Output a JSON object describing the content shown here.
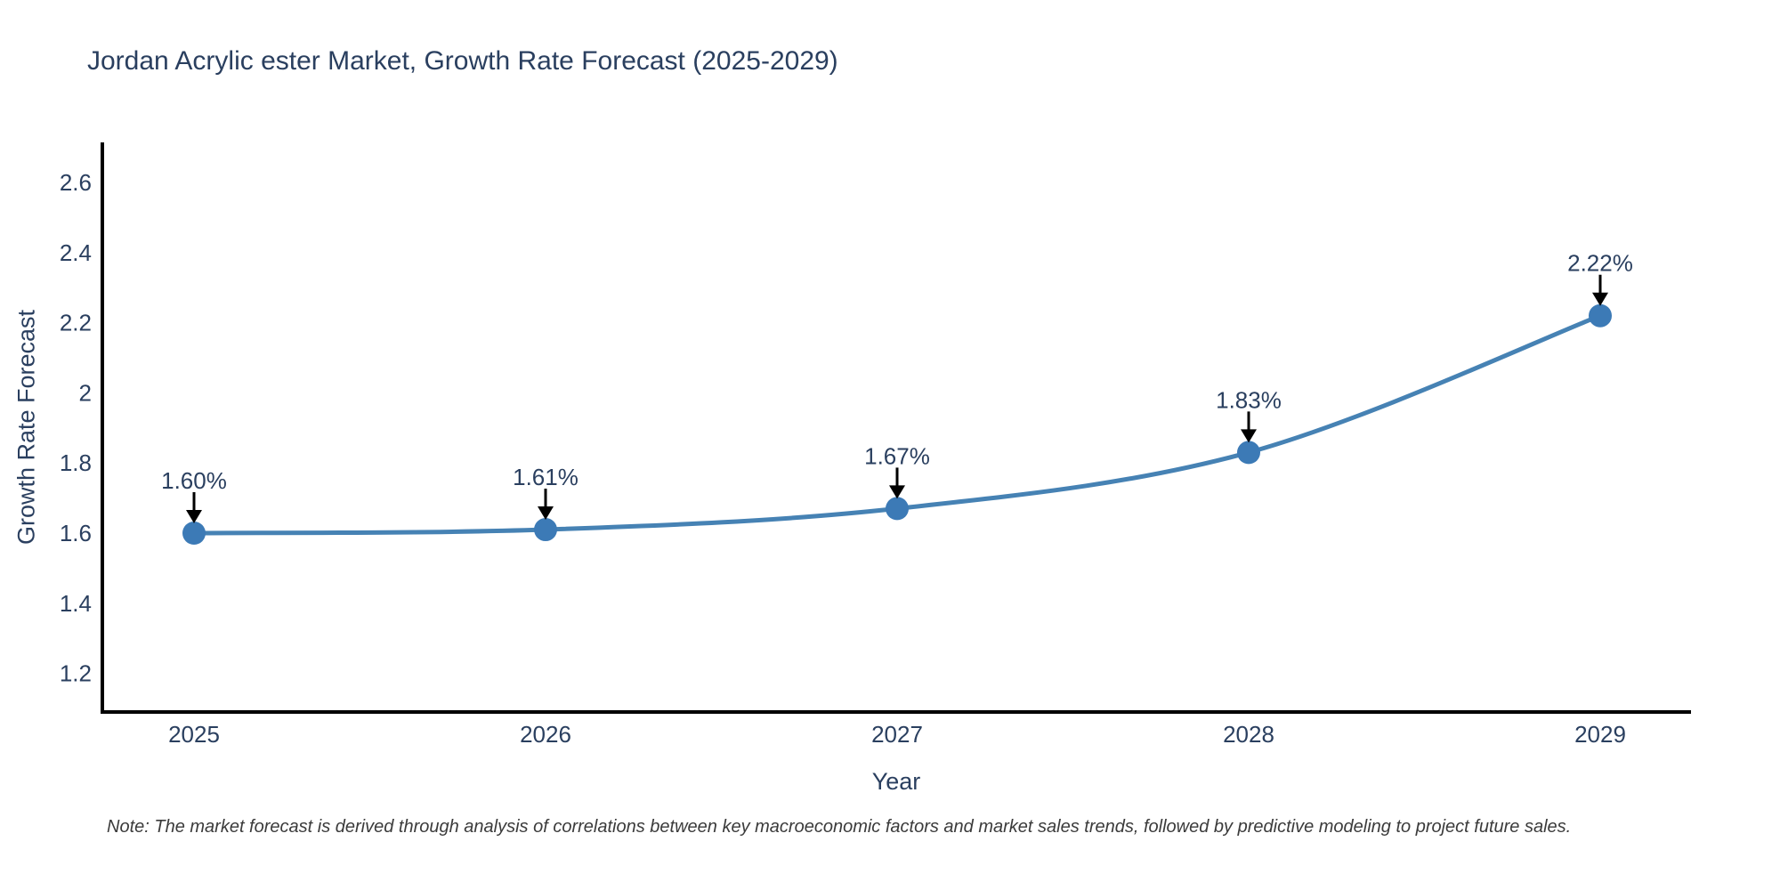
{
  "page": {
    "background": "#ffffff"
  },
  "header": {
    "title": "Jordan Acrylic ester Market, Growth Rate Forecast (2025-2029)"
  },
  "chart_data": {
    "type": "line",
    "title": "Jordan Acrylic ester Market, Growth Rate Forecast (2025-2029)",
    "xlabel": "Year",
    "ylabel": "Growth Rate Forecast",
    "x": [
      2025,
      2026,
      2027,
      2028,
      2029
    ],
    "series": [
      {
        "name": "Growth Rate Forecast",
        "values": [
          1.6,
          1.61,
          1.67,
          1.83,
          2.22
        ],
        "point_labels": [
          "1.60%",
          "1.61%",
          "1.67%",
          "1.83%",
          "2.22%"
        ]
      }
    ],
    "yticks": {
      "values": [
        2.6,
        2.4,
        2.2,
        2.0,
        1.8,
        1.6,
        1.4,
        1.2
      ],
      "labels": [
        "2.6",
        "2.4",
        "2.2",
        "2",
        "1.8",
        "1.6",
        "1.4",
        "1.2"
      ]
    },
    "xticks": {
      "values": [
        2025,
        2026,
        2027,
        2028,
        2029
      ],
      "labels": [
        "2025",
        "2026",
        "2027",
        "2028",
        "2029"
      ]
    },
    "ylim": [
      1.09,
      2.71
    ],
    "xlim": [
      2024.74,
      2029.26
    ],
    "grid": false,
    "legend": "none",
    "line_shape": "spline",
    "colors": {
      "line": "#4682b4",
      "marker": "#3c7ab6",
      "arrow": "#000000",
      "axis": "#000000",
      "text": "#2a3f5f",
      "note_text": "#3b3b3b",
      "background": "#ffffff"
    },
    "note": "Note: The market forecast is derived through analysis of correlations between key macroeconomic factors and market sales trends, followed by predictive modeling to project future sales."
  }
}
